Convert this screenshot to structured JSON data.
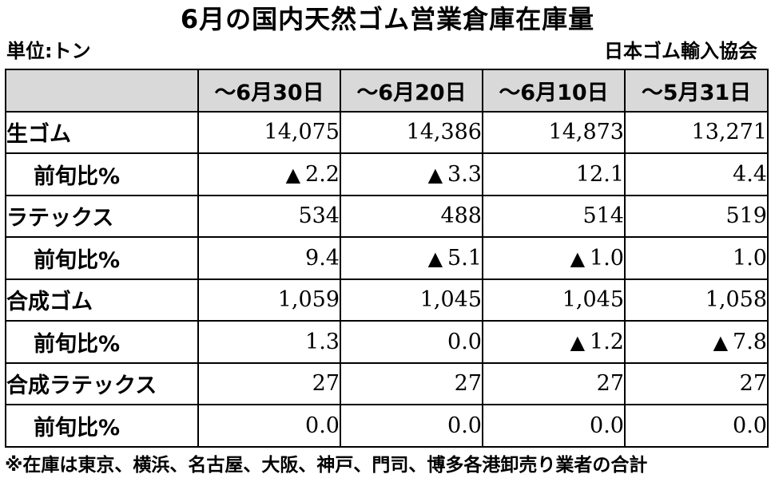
{
  "title": "6月の国内天然ゴム営業倉庫在庫量",
  "unit": "単位:トン",
  "source": "日本ゴム輸入協会",
  "columns": [
    "～6月30日",
    "～6月20日",
    "～6月10日",
    "～5月31日"
  ],
  "decrease_marker": "▲",
  "rows": [
    {
      "label": "生ゴム",
      "values": [
        {
          "marker": "",
          "value": "14,075"
        },
        {
          "marker": "",
          "value": "14,386"
        },
        {
          "marker": "",
          "value": "14,873"
        },
        {
          "marker": "",
          "value": "13,271"
        }
      ]
    },
    {
      "label": "前旬比%",
      "values": [
        {
          "marker": "▲",
          "value": "2.2"
        },
        {
          "marker": "▲",
          "value": "3.3"
        },
        {
          "marker": "",
          "value": "12.1"
        },
        {
          "marker": "",
          "value": "4.4"
        }
      ]
    },
    {
      "label": "ラテックス",
      "values": [
        {
          "marker": "",
          "value": "534"
        },
        {
          "marker": "",
          "value": "488"
        },
        {
          "marker": "",
          "value": "514"
        },
        {
          "marker": "",
          "value": "519"
        }
      ]
    },
    {
      "label": "前旬比%",
      "values": [
        {
          "marker": "",
          "value": "9.4"
        },
        {
          "marker": "▲",
          "value": "5.1"
        },
        {
          "marker": "▲",
          "value": "1.0"
        },
        {
          "marker": "",
          "value": "1.0"
        }
      ]
    },
    {
      "label": "合成ゴム",
      "values": [
        {
          "marker": "",
          "value": "1,059"
        },
        {
          "marker": "",
          "value": "1,045"
        },
        {
          "marker": "",
          "value": "1,045"
        },
        {
          "marker": "",
          "value": "1,058"
        }
      ]
    },
    {
      "label": "前旬比%",
      "values": [
        {
          "marker": "",
          "value": "1.3"
        },
        {
          "marker": "",
          "value": "0.0"
        },
        {
          "marker": "▲",
          "value": "1.2"
        },
        {
          "marker": "▲",
          "value": "7.8"
        }
      ]
    },
    {
      "label": "合成ラテックス",
      "values": [
        {
          "marker": "",
          "value": "27"
        },
        {
          "marker": "",
          "value": "27"
        },
        {
          "marker": "",
          "value": "27"
        },
        {
          "marker": "",
          "value": "27"
        }
      ]
    },
    {
      "label": "前旬比%",
      "values": [
        {
          "marker": "",
          "value": "0.0"
        },
        {
          "marker": "",
          "value": "0.0"
        },
        {
          "marker": "",
          "value": "0.0"
        },
        {
          "marker": "",
          "value": "0.0"
        }
      ]
    }
  ],
  "footnote": "※在庫は東京、横浜、名古屋、大阪、神戸、門司、博多各港卸売り業者の合計"
}
